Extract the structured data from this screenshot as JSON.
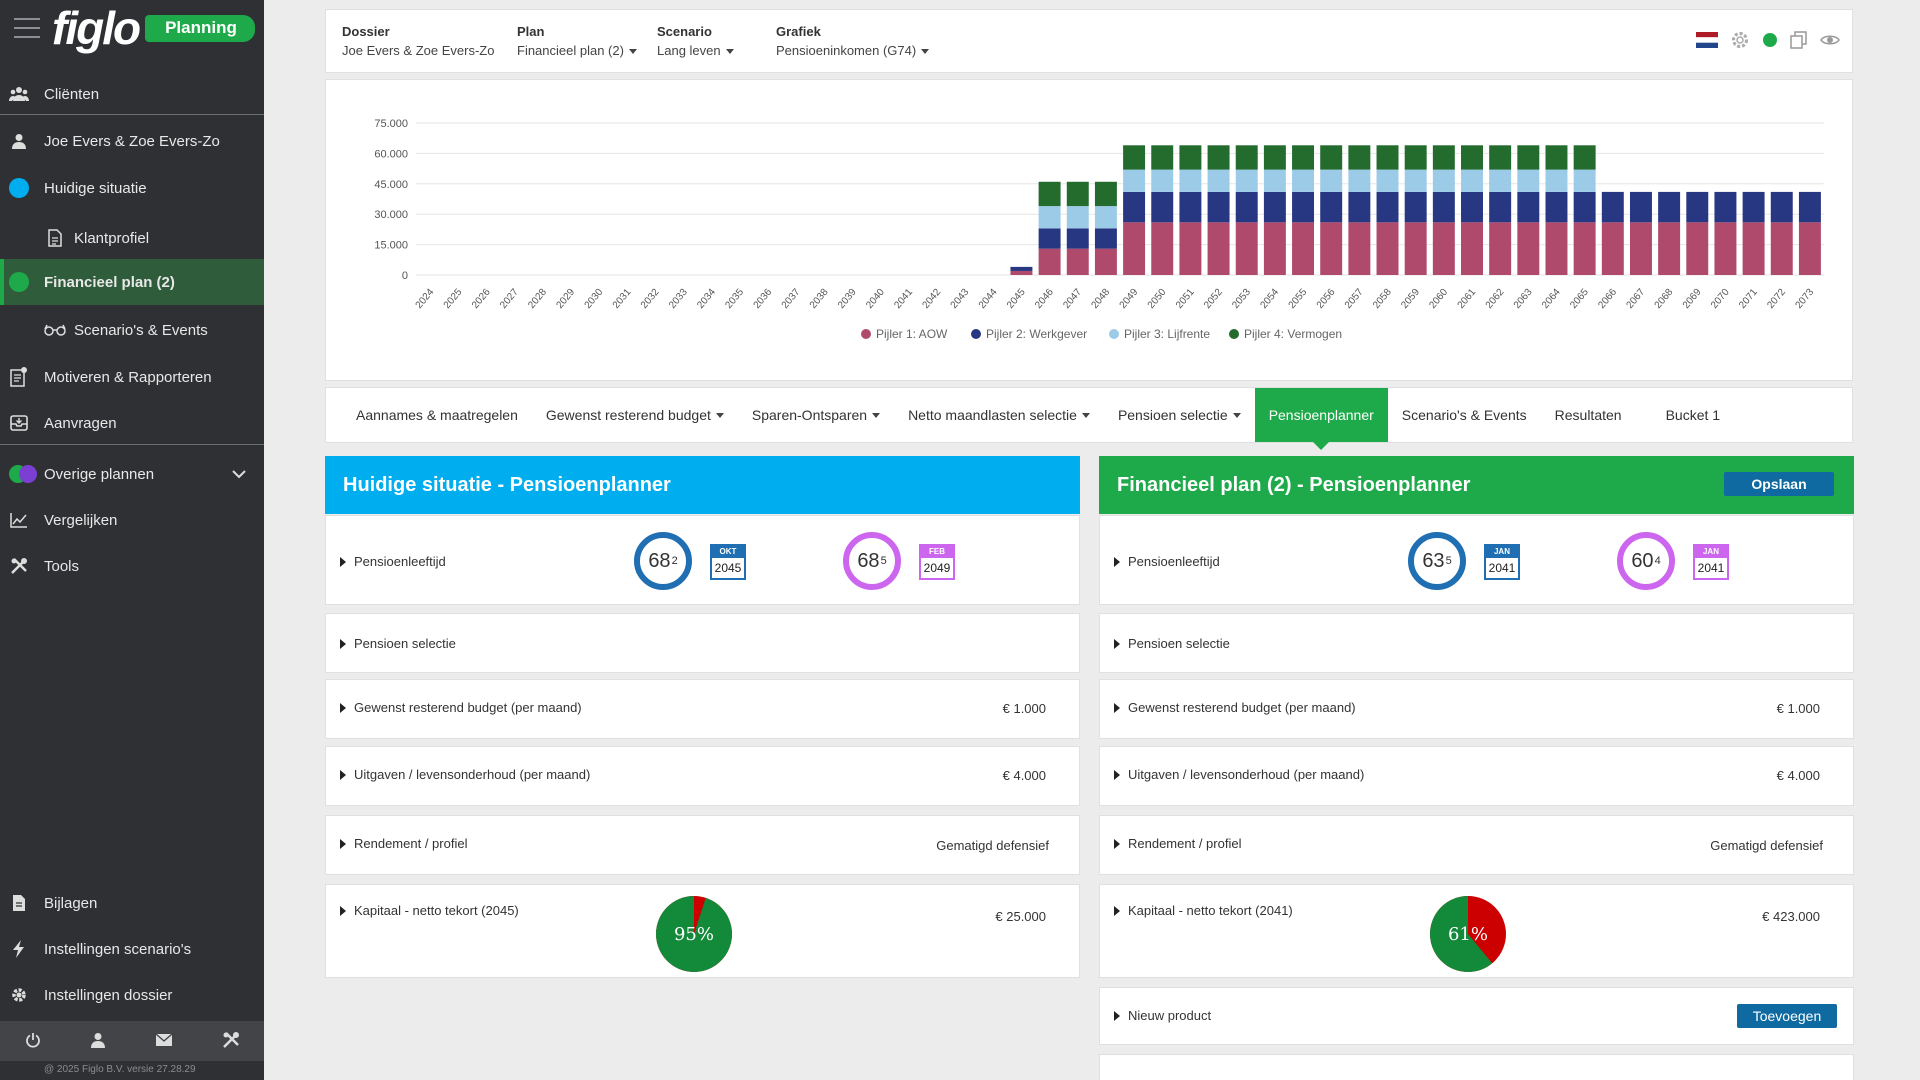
{
  "sidebar": {
    "brand": "figlo",
    "badge": "Planning",
    "items": [
      {
        "label": "Cliënten"
      },
      {
        "label": "Joe Evers & Zoe Evers-Zo"
      },
      {
        "label": "Huidige situatie"
      },
      {
        "label": "Klantprofiel"
      },
      {
        "label": "Financieel plan (2)"
      },
      {
        "label": "Scenario's & Events"
      },
      {
        "label": "Motiveren & Rapporteren"
      },
      {
        "label": "Aanvragen"
      },
      {
        "label": "Overige plannen"
      },
      {
        "label": "Vergelijken"
      },
      {
        "label": "Tools"
      },
      {
        "label": "Bijlagen"
      },
      {
        "label": "Instellingen scenario's"
      },
      {
        "label": "Instellingen dossier"
      }
    ],
    "version": "@ 2025 Figlo B.V. versie 27.28.29"
  },
  "header": {
    "dossier_label": "Dossier",
    "dossier_value": "Joe Evers & Zoe Evers-Zo",
    "plan_label": "Plan",
    "plan_value": "Financieel plan (2)",
    "scenario_label": "Scenario",
    "scenario_value": "Lang leven",
    "grafiek_label": "Grafiek",
    "grafiek_value": "Pensioeninkomen (G74)"
  },
  "colors": {
    "green": "#1eaa4a",
    "blue": "#00adef",
    "aow": "#b04a6c",
    "werkgever": "#283782",
    "lijfrente": "#9ccbe8",
    "vermogen": "#246b2e"
  },
  "chart_data": {
    "type": "bar",
    "stacked": true,
    "ylim": [
      0,
      75000
    ],
    "yticks": [
      "0",
      "15.000",
      "30.000",
      "45.000",
      "60.000",
      "75.000"
    ],
    "categories": [
      "2024",
      "2025",
      "2026",
      "2027",
      "2028",
      "2029",
      "2030",
      "2031",
      "2032",
      "2033",
      "2034",
      "2035",
      "2036",
      "2037",
      "2038",
      "2039",
      "2040",
      "2041",
      "2042",
      "2043",
      "2044",
      "2045",
      "2046",
      "2047",
      "2048",
      "2049",
      "2050",
      "2051",
      "2052",
      "2053",
      "2054",
      "2055",
      "2056",
      "2057",
      "2058",
      "2059",
      "2060",
      "2061",
      "2062",
      "2063",
      "2064",
      "2065",
      "2066",
      "2067",
      "2068",
      "2069",
      "2070",
      "2071",
      "2072",
      "2073"
    ],
    "series": [
      {
        "name": "Pijler 1: AOW",
        "color": "#b04a6c",
        "values": [
          0,
          0,
          0,
          0,
          0,
          0,
          0,
          0,
          0,
          0,
          0,
          0,
          0,
          0,
          0,
          0,
          0,
          0,
          0,
          0,
          0,
          2000,
          13000,
          13000,
          13000,
          26000,
          26000,
          26000,
          26000,
          26000,
          26000,
          26000,
          26000,
          26000,
          26000,
          26000,
          26000,
          26000,
          26000,
          26000,
          26000,
          26000,
          26000,
          26000,
          26000,
          26000,
          26000,
          26000,
          26000,
          26000
        ]
      },
      {
        "name": "Pijler 2: Werkgever",
        "color": "#283782",
        "values": [
          0,
          0,
          0,
          0,
          0,
          0,
          0,
          0,
          0,
          0,
          0,
          0,
          0,
          0,
          0,
          0,
          0,
          0,
          0,
          0,
          0,
          2000,
          10000,
          10000,
          10000,
          15000,
          15000,
          15000,
          15000,
          15000,
          15000,
          15000,
          15000,
          15000,
          15000,
          15000,
          15000,
          15000,
          15000,
          15000,
          15000,
          15000,
          15000,
          15000,
          15000,
          15000,
          15000,
          15000,
          15000,
          15000
        ]
      },
      {
        "name": "Pijler 3: Lijfrente",
        "color": "#9ccbe8",
        "values": [
          0,
          0,
          0,
          0,
          0,
          0,
          0,
          0,
          0,
          0,
          0,
          0,
          0,
          0,
          0,
          0,
          0,
          0,
          0,
          0,
          0,
          0,
          11000,
          11000,
          11000,
          11000,
          11000,
          11000,
          11000,
          11000,
          11000,
          11000,
          11000,
          11000,
          11000,
          11000,
          11000,
          11000,
          11000,
          11000,
          11000,
          11000,
          0,
          0,
          0,
          0,
          0,
          0,
          0,
          0
        ]
      },
      {
        "name": "Pijler 4: Vermogen",
        "color": "#246b2e",
        "values": [
          0,
          0,
          0,
          0,
          0,
          0,
          0,
          0,
          0,
          0,
          0,
          0,
          0,
          0,
          0,
          0,
          0,
          0,
          0,
          0,
          0,
          0,
          12000,
          12000,
          12000,
          12000,
          12000,
          12000,
          12000,
          12000,
          12000,
          12000,
          12000,
          12000,
          12000,
          12000,
          12000,
          12000,
          12000,
          12000,
          12000,
          12000,
          0,
          0,
          0,
          0,
          0,
          0,
          0,
          0
        ]
      }
    ]
  },
  "tabs": [
    {
      "label": "Aannames & maatregelen",
      "dropdown": false
    },
    {
      "label": "Gewenst resterend budget",
      "dropdown": true
    },
    {
      "label": "Sparen-Ontsparen",
      "dropdown": true
    },
    {
      "label": "Netto maandlasten selectie",
      "dropdown": true
    },
    {
      "label": "Pensioen selectie",
      "dropdown": true
    },
    {
      "label": "Pensioenplanner",
      "dropdown": false,
      "active": true
    },
    {
      "label": "Scenario's & Events",
      "dropdown": false
    },
    {
      "label": "Resultaten",
      "dropdown": false
    },
    {
      "label": "Bucket 1",
      "dropdown": false
    }
  ],
  "left": {
    "title": "Huidige situatie - Pensioenplanner",
    "pensioenleeftijd": "Pensioenleeftijd",
    "age1": "68",
    "age1_sup": "2",
    "cal1_month": "OKT",
    "cal1_year": "2045",
    "age2": "68",
    "age2_sup": "5",
    "cal2_month": "FEB",
    "cal2_year": "2049",
    "pensioen_selectie": "Pensioen selectie",
    "budget_label": "Gewenst resterend budget (per maand)",
    "budget_value": "€ 1.000",
    "uitgaven_label": "Uitgaven / levensonderhoud (per maand)",
    "uitgaven_value": "€ 4.000",
    "rendement_label": "Rendement / profiel",
    "rendement_value": "Gematigd defensief",
    "kapitaal_label": "Kapitaal - netto tekort (2045)",
    "kapitaal_value": "€ 25.000",
    "pie_pct": "95%",
    "pie_fraction": 0.95
  },
  "right": {
    "title": "Financieel plan (2) - Pensioenplanner",
    "save": "Opslaan",
    "pensioenleeftijd": "Pensioenleeftijd",
    "age1": "63",
    "age1_sup": "5",
    "cal1_month": "JAN",
    "cal1_year": "2041",
    "age2": "60",
    "age2_sup": "4",
    "cal2_month": "JAN",
    "cal2_year": "2041",
    "pensioen_selectie": "Pensioen selectie",
    "budget_label": "Gewenst resterend budget (per maand)",
    "budget_value": "€ 1.000",
    "uitgaven_label": "Uitgaven / levensonderhoud (per maand)",
    "uitgaven_value": "€ 4.000",
    "rendement_label": "Rendement / profiel",
    "rendement_value": "Gematigd defensief",
    "kapitaal_label": "Kapitaal - netto tekort (2041)",
    "kapitaal_value": "€ 423.000",
    "pie_pct": "61%",
    "pie_fraction": 0.61,
    "nieuw_product": "Nieuw product",
    "toevoegen": "Toevoegen"
  }
}
